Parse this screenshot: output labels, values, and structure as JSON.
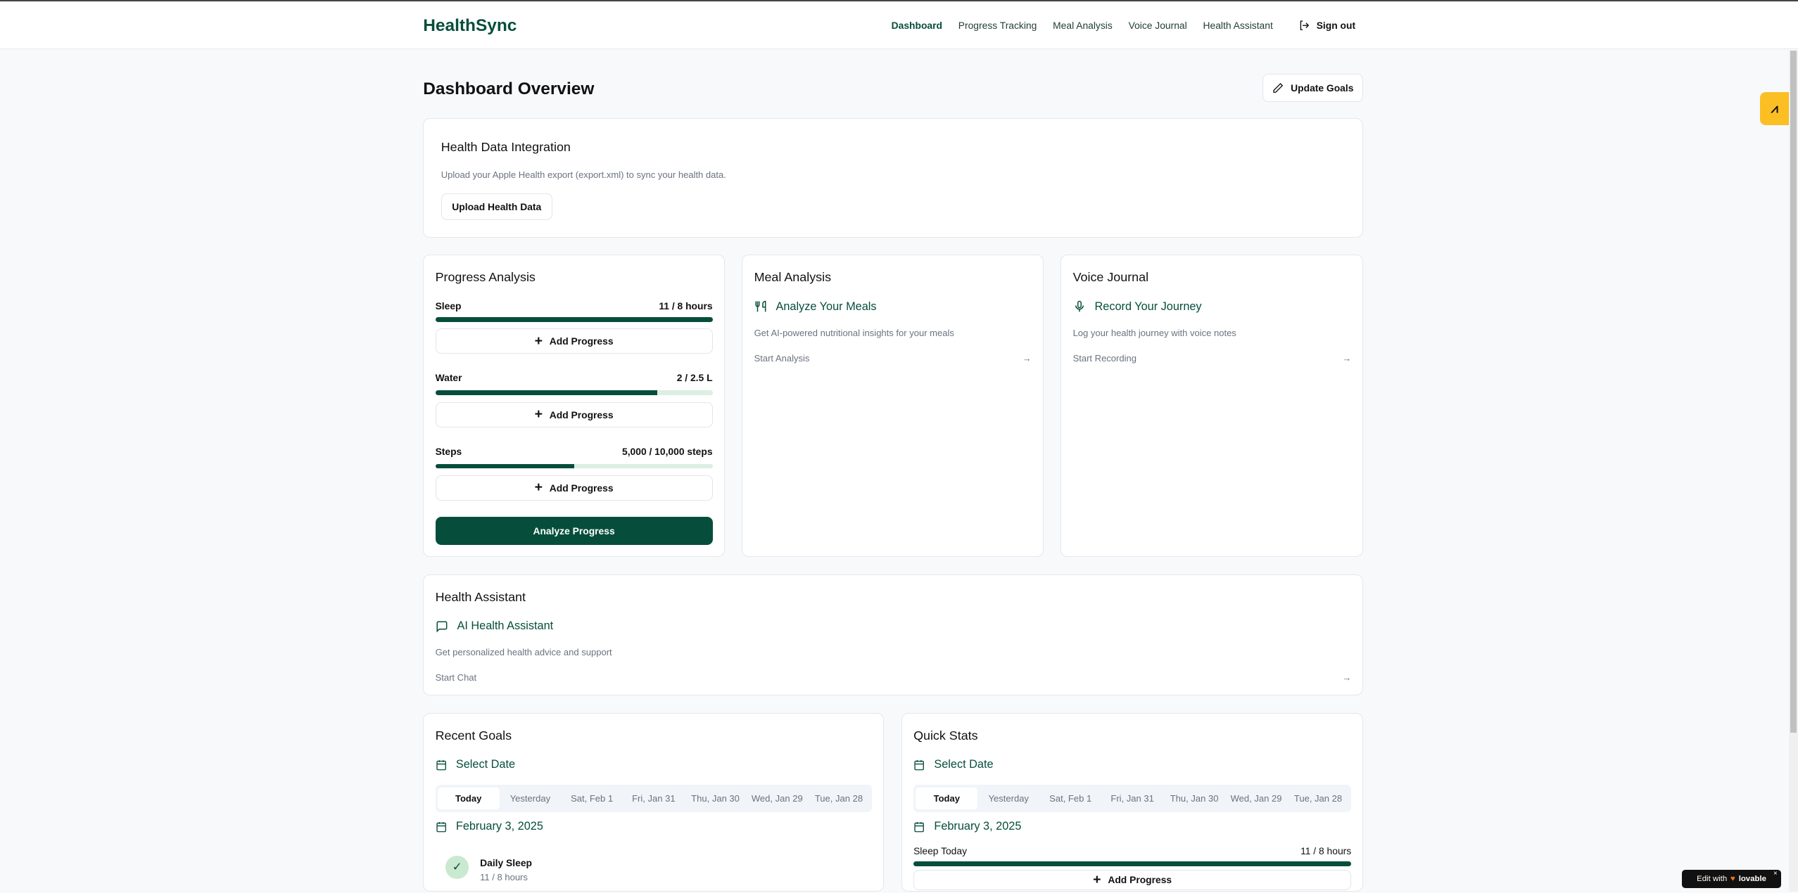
{
  "app": {
    "name": "HealthSync"
  },
  "nav": {
    "items": [
      "Dashboard",
      "Progress Tracking",
      "Meal Analysis",
      "Voice Journal",
      "Health Assistant"
    ],
    "sign_out": "Sign out"
  },
  "page": {
    "title": "Dashboard Overview",
    "update_goals": "Update Goals"
  },
  "integration": {
    "title": "Health Data Integration",
    "desc": "Upload your Apple Health export (export.xml) to sync your health data.",
    "button": "Upload Health Data"
  },
  "progress": {
    "title": "Progress Analysis",
    "items": [
      {
        "label": "Sleep",
        "value": "11 / 8 hours",
        "percent": 100
      },
      {
        "label": "Water",
        "value": "2 / 2.5 L",
        "percent": 80
      },
      {
        "label": "Steps",
        "value": "5,000 / 10,000 steps",
        "percent": 50
      }
    ],
    "add_label": "Add Progress",
    "analyze": "Analyze Progress"
  },
  "meal": {
    "title": "Meal Analysis",
    "feature": "Analyze Your Meals",
    "desc": "Get AI-powered nutritional insights for your meals",
    "link": "Start Analysis"
  },
  "voice": {
    "title": "Voice Journal",
    "feature": "Record Your Journey",
    "desc": "Log your health journey with voice notes",
    "link": "Start Recording"
  },
  "assistant": {
    "title": "Health Assistant",
    "feature": "AI Health Assistant",
    "desc": "Get personalized health advice and support",
    "link": "Start Chat"
  },
  "goals": {
    "title": "Recent Goals",
    "select_date": "Select Date",
    "tabs": [
      "Today",
      "Yesterday",
      "Sat, Feb 1",
      "Fri, Jan 31",
      "Thu, Jan 30",
      "Wed, Jan 29",
      "Tue, Jan 28"
    ],
    "date": "February 3, 2025",
    "items": [
      {
        "name": "Daily Sleep",
        "value": "11 / 8 hours"
      }
    ]
  },
  "stats": {
    "title": "Quick Stats",
    "select_date": "Select Date",
    "tabs": [
      "Today",
      "Yesterday",
      "Sat, Feb 1",
      "Fri, Jan 31",
      "Thu, Jan 30",
      "Wed, Jan 29",
      "Tue, Jan 28"
    ],
    "date": "February 3, 2025",
    "sleep_label": "Sleep Today",
    "sleep_value": "11 / 8 hours",
    "sleep_percent": 100,
    "add_label": "Add Progress"
  },
  "badge": {
    "text": "Edit with",
    "brand": "lovable"
  },
  "colors": {
    "brand": "#064e3b",
    "accent_badge": "#fbbf24"
  }
}
